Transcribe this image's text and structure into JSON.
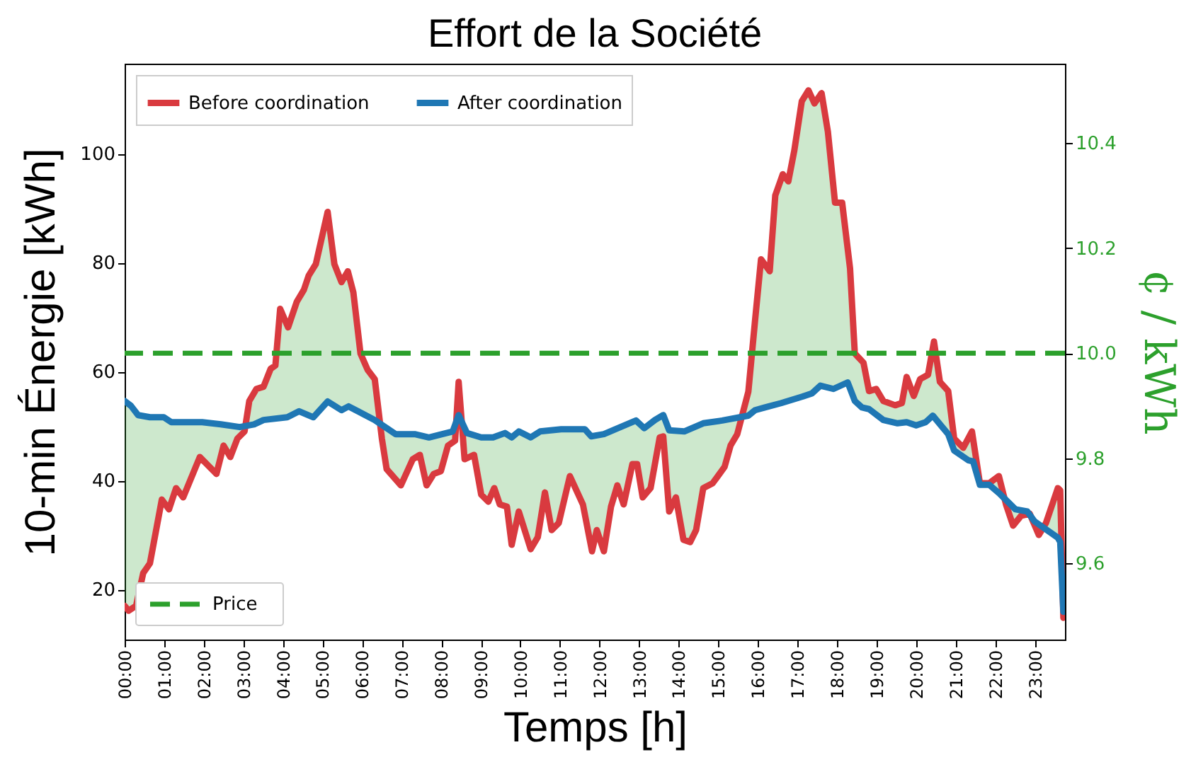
{
  "chart_data": {
    "type": "line",
    "title": "Effort de la Société",
    "xlabel": "Temps [h]",
    "ylabel": "10-min Énergie  [kWh]",
    "y2label": "¢ / kWh",
    "xlim": [
      0,
      23.76
    ],
    "ylim": [
      10.8,
      116.5
    ],
    "y2lim": [
      9.455,
      10.551
    ],
    "xticks": [
      {
        "value": 0,
        "label": "00:00"
      },
      {
        "value": 1,
        "label": "01:00"
      },
      {
        "value": 2,
        "label": "02:00"
      },
      {
        "value": 3,
        "label": "03:00"
      },
      {
        "value": 4,
        "label": "04:00"
      },
      {
        "value": 5,
        "label": "05:00"
      },
      {
        "value": 6,
        "label": "06:00"
      },
      {
        "value": 7,
        "label": "07:00"
      },
      {
        "value": 8,
        "label": "08:00"
      },
      {
        "value": 9,
        "label": "09:00"
      },
      {
        "value": 10,
        "label": "10:00"
      },
      {
        "value": 11,
        "label": "11:00"
      },
      {
        "value": 12,
        "label": "12:00"
      },
      {
        "value": 13,
        "label": "13:00"
      },
      {
        "value": 14,
        "label": "14:00"
      },
      {
        "value": 15,
        "label": "15:00"
      },
      {
        "value": 16,
        "label": "16:00"
      },
      {
        "value": 17,
        "label": "17:00"
      },
      {
        "value": 18,
        "label": "18:00"
      },
      {
        "value": 19,
        "label": "19:00"
      },
      {
        "value": 20,
        "label": "20:00"
      },
      {
        "value": 21,
        "label": "21:00"
      },
      {
        "value": 22,
        "label": "22:00"
      },
      {
        "value": 23,
        "label": "23:00"
      }
    ],
    "yticks": [
      20,
      40,
      60,
      80,
      100
    ],
    "y2ticks": [
      9.6,
      9.8,
      {
        "value": 10,
        "label": "10.0"
      },
      10.2,
      10.4
    ],
    "legend": "top left",
    "series": [
      {
        "name": "Before coordination",
        "color": "#d93a3f",
        "x": [
          0,
          0.1,
          0.29,
          0.47,
          0.64,
          0.94,
          1.12,
          1.3,
          1.48,
          1.9,
          2.32,
          2.5,
          2.67,
          2.85,
          3.03,
          3.15,
          3.33,
          3.51,
          3.69,
          3.81,
          3.93,
          4.13,
          4.35,
          4.53,
          4.65,
          4.83,
          5.13,
          5.3,
          5.48,
          5.64,
          5.78,
          5.96,
          6.14,
          6.32,
          6.5,
          6.62,
          6.98,
          7.28,
          7.46,
          7.63,
          7.81,
          7.99,
          8.17,
          8.35,
          8.44,
          8.59,
          8.83,
          9.01,
          9.19,
          9.34,
          9.48,
          9.66,
          9.78,
          9.96,
          10.26,
          10.44,
          10.62,
          10.79,
          10.97,
          11.25,
          11.58,
          11.81,
          11.93,
          12.11,
          12.29,
          12.45,
          12.61,
          12.83,
          12.95,
          13.09,
          13.29,
          13.52,
          13.61,
          13.76,
          13.93,
          14.12,
          14.29,
          14.44,
          14.62,
          14.86,
          15.16,
          15.31,
          15.48,
          15.76,
          15.93,
          16.08,
          16.3,
          16.44,
          16.63,
          16.77,
          16.92,
          17.11,
          17.28,
          17.43,
          17.61,
          17.77,
          17.95,
          18.13,
          18.33,
          18.45,
          18.67,
          18.81,
          18.99,
          19.17,
          19.47,
          19.64,
          19.76,
          19.94,
          20.1,
          20.3,
          20.45,
          20.6,
          20.81,
          20.96,
          21.19,
          21.41,
          21.61,
          21.85,
          22.09,
          22.27,
          22.45,
          22.65,
          22.87,
          23.1,
          23.28,
          23.58,
          23.64,
          23.72
        ],
        "values": [
          17,
          16.1,
          17,
          23,
          24.8,
          36.5,
          34.7,
          38.6,
          36.9,
          44.3,
          41.2,
          46.4,
          44.3,
          47.7,
          49,
          54.6,
          56.8,
          57.2,
          60.5,
          61.1,
          71.5,
          68.1,
          72.8,
          75,
          77.6,
          79.7,
          89.3,
          79.7,
          76.4,
          78.4,
          74.5,
          63.3,
          60.3,
          58.6,
          47.7,
          42.1,
          39.1,
          43.9,
          44.7,
          39.1,
          41.2,
          41.7,
          46.4,
          47.3,
          58.1,
          43.9,
          44.7,
          37.4,
          36.1,
          38.6,
          35.6,
          35.2,
          28.2,
          34.3,
          27.4,
          29.6,
          37.8,
          30.9,
          32.2,
          40.8,
          35.6,
          27,
          30.9,
          27,
          35.2,
          39.1,
          35.6,
          43,
          43,
          36.9,
          38.6,
          47.9,
          48.1,
          34.3,
          36.9,
          29.1,
          28.7,
          30.9,
          38.6,
          39.5,
          42.5,
          46.4,
          48.5,
          56.3,
          69.4,
          80.6,
          78.4,
          92.3,
          96.2,
          94.9,
          100.5,
          109.6,
          111.6,
          109.2,
          111.1,
          104,
          91,
          91,
          78.9,
          63.3,
          61.6,
          56.4,
          56.8,
          54.6,
          53.8,
          54.2,
          59,
          55.5,
          58.6,
          59.4,
          65.5,
          58.1,
          56.4,
          47.7,
          46,
          49,
          39.5,
          39.5,
          40.8,
          35.6,
          31.7,
          33.5,
          33.9,
          30,
          32.2,
          38.6,
          38.2,
          14.8
        ]
      },
      {
        "name": "After coordination",
        "color": "#1f77b4",
        "x": [
          0,
          0.16,
          0.34,
          0.64,
          0.99,
          1.18,
          1.48,
          1.96,
          2.43,
          2.91,
          3.27,
          3.51,
          4.11,
          4.41,
          4.77,
          5.13,
          5.48,
          5.66,
          6.32,
          6.85,
          7.33,
          7.69,
          8.29,
          8.44,
          8.65,
          9.01,
          9.31,
          9.61,
          9.78,
          9.96,
          10.26,
          10.5,
          11.03,
          11.63,
          11.79,
          12.11,
          12.53,
          12.92,
          13.13,
          13.4,
          13.61,
          13.76,
          14.14,
          14.62,
          15.1,
          15.76,
          15.93,
          16.18,
          16.59,
          17.13,
          17.37,
          17.58,
          17.91,
          18.27,
          18.45,
          18.63,
          18.81,
          19.17,
          19.53,
          19.76,
          20,
          20.24,
          20.42,
          20.66,
          20.81,
          20.96,
          21.32,
          21.44,
          21.61,
          21.85,
          22.09,
          22.33,
          22.51,
          22.81,
          22.99,
          23.58,
          23.64,
          23.72
        ],
        "values": [
          54.6,
          53.7,
          52,
          51.6,
          51.6,
          50.7,
          50.7,
          50.7,
          50.3,
          49.8,
          50.3,
          51.1,
          51.6,
          52.7,
          51.6,
          54.5,
          52.9,
          53.6,
          51.1,
          48.5,
          48.5,
          47.9,
          49,
          52,
          48.7,
          47.9,
          47.9,
          48.7,
          47.9,
          49,
          47.9,
          49,
          49.4,
          49.4,
          48.1,
          48.5,
          49.8,
          51,
          49.6,
          51.1,
          52,
          49.2,
          49,
          50.5,
          51,
          51.9,
          52.9,
          53.4,
          54.2,
          55.4,
          56,
          57.4,
          56.8,
          58,
          54.6,
          53.4,
          53.1,
          51.1,
          50.5,
          50.7,
          50.1,
          50.7,
          51.9,
          49.8,
          48.5,
          45.5,
          43.7,
          43.5,
          39.2,
          39.2,
          37.7,
          36,
          34.7,
          34.3,
          32.5,
          29.5,
          28.7,
          15.9
        ]
      }
    ],
    "ref_lines": [
      {
        "axis": "y2",
        "value": 10,
        "label": "Price",
        "color": "#2ca02c",
        "line_style": "dashed"
      }
    ]
  }
}
